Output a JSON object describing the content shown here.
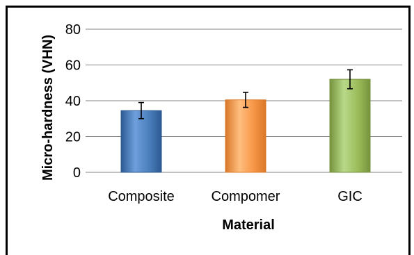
{
  "chart_data": {
    "type": "bar",
    "title": "",
    "xlabel": "Material",
    "ylabel": "Micro-hardness (VHN)",
    "categories": [
      "Composite",
      "Compomer",
      "GIC"
    ],
    "values": [
      34.5,
      40.5,
      52.0
    ],
    "error": [
      4.5,
      4.2,
      5.3
    ],
    "ylim": [
      0,
      80
    ],
    "yticks": [
      0,
      20,
      40,
      60,
      80
    ],
    "grid": true,
    "legend": "none",
    "bar_colors": [
      {
        "light": "#6f9fdd",
        "main": "#4a7ebb",
        "dark": "#2c5a92"
      },
      {
        "light": "#ffbf7f",
        "main": "#f79646",
        "dark": "#d9782a"
      },
      {
        "light": "#b9d98a",
        "main": "#9bbb59",
        "dark": "#76933c"
      }
    ]
  }
}
